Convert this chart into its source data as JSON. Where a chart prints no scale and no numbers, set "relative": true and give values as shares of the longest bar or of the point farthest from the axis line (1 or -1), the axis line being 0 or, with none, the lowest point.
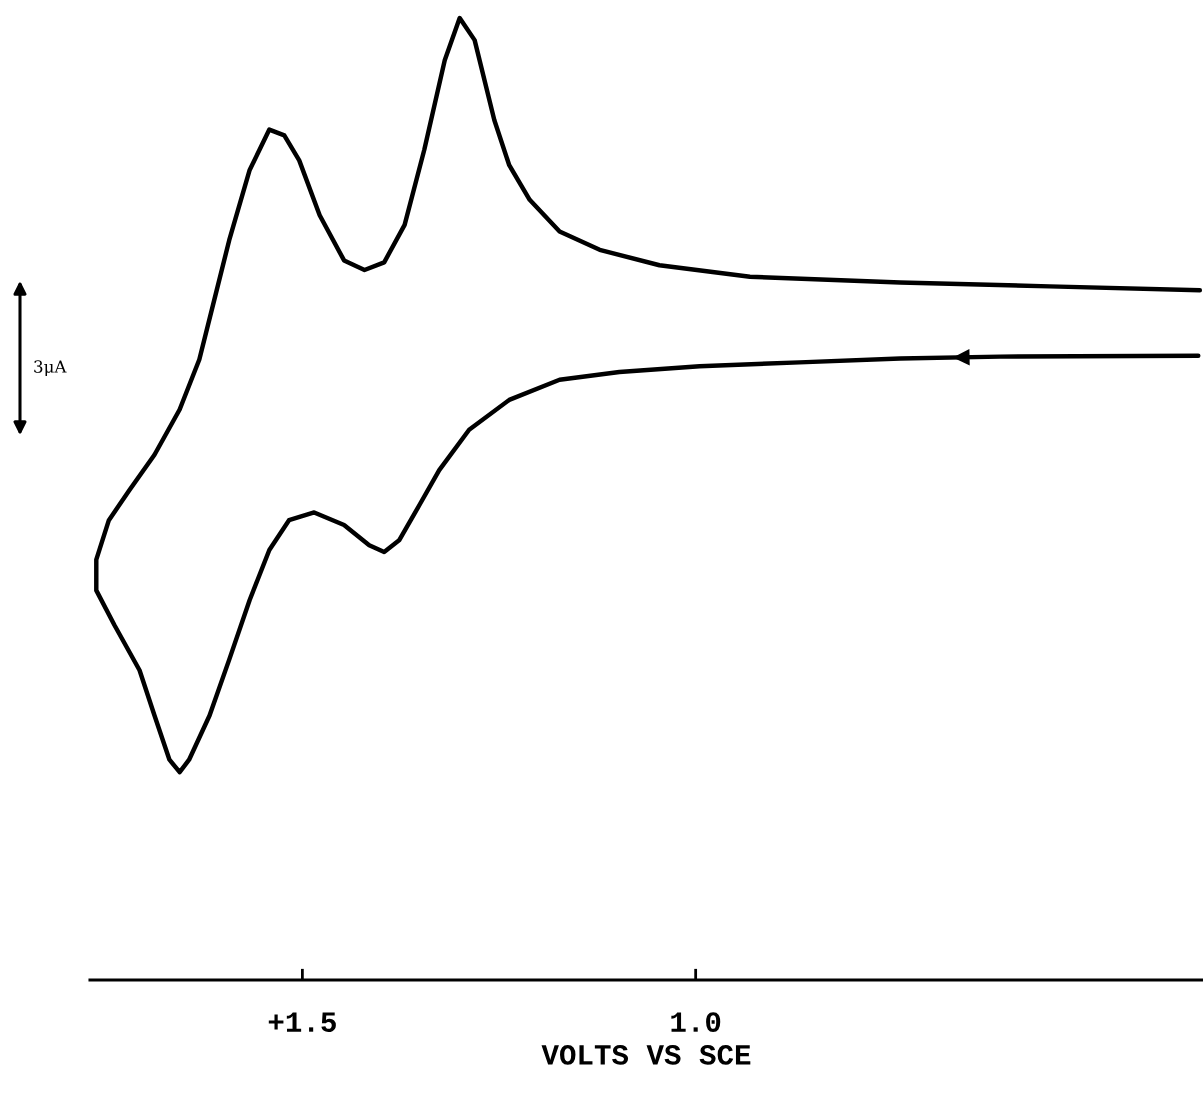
{
  "chart_data": {
    "type": "line",
    "relative": true,
    "xlabel": "VOLTS VS SCE",
    "annotations": [
      "3μA"
    ],
    "xlim": [
      1.77,
      0.355
    ],
    "xticks": [
      {
        "value": 1.5,
        "label": "+1.5"
      },
      {
        "value": 1.0,
        "label": "1.0"
      }
    ],
    "grid": false,
    "legend": false,
    "series": [
      {
        "color": "#000000",
        "x": [
          0.361,
          0.613,
          0.74,
          0.868,
          0.995,
          1.097,
          1.173,
          1.237,
          1.288,
          1.326,
          1.351,
          1.377,
          1.396,
          1.415,
          1.447,
          1.485,
          1.517,
          1.542,
          1.567,
          1.593,
          1.618,
          1.644,
          1.656,
          1.669,
          1.688,
          1.707,
          1.739,
          1.762,
          1.762,
          1.746,
          1.72,
          1.688,
          1.656,
          1.631,
          1.612,
          1.593,
          1.567,
          1.542,
          1.523,
          1.504,
          1.478,
          1.447,
          1.421,
          1.396,
          1.37,
          1.345,
          1.319,
          1.3,
          1.281,
          1.256,
          1.237,
          1.211,
          1.173,
          1.122,
          1.046,
          0.931,
          0.74,
          0.55,
          0.359
        ],
        "values": [
          0.649,
          0.648,
          0.646,
          0.642,
          0.638,
          0.632,
          0.624,
          0.603,
          0.572,
          0.53,
          0.494,
          0.457,
          0.445,
          0.452,
          0.473,
          0.486,
          0.478,
          0.447,
          0.395,
          0.333,
          0.275,
          0.229,
          0.216,
          0.229,
          0.275,
          0.322,
          0.369,
          0.405,
          0.437,
          0.478,
          0.509,
          0.546,
          0.593,
          0.645,
          0.707,
          0.769,
          0.842,
          0.884,
          0.878,
          0.852,
          0.795,
          0.748,
          0.738,
          0.746,
          0.785,
          0.863,
          0.956,
          1.0,
          0.977,
          0.894,
          0.847,
          0.811,
          0.778,
          0.759,
          0.743,
          0.731,
          0.725,
          0.721,
          0.717
        ]
      }
    ]
  }
}
